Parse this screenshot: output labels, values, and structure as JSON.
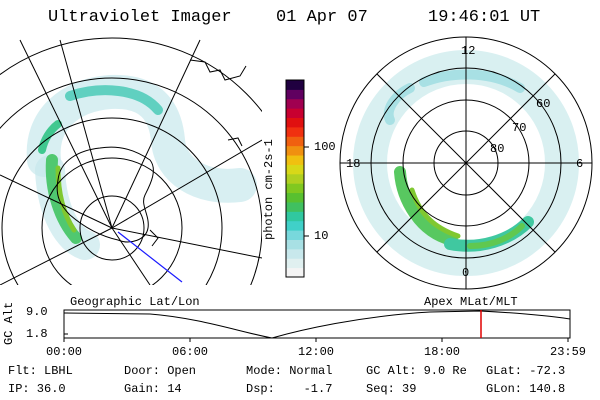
{
  "header": {
    "title": "Ultraviolet Imager",
    "date": "01 Apr 07",
    "time": "19:46:01 UT"
  },
  "colorbar": {
    "unit_label": "photon cm-2s-1",
    "ticks": [
      "100",
      "10"
    ],
    "colors": [
      "#f4f4f4",
      "#e0f0f0",
      "#c8e8ec",
      "#a8e0e4",
      "#78d8dc",
      "#40d0c8",
      "#30c8a0",
      "#40c060",
      "#58c030",
      "#80c820",
      "#b0d020",
      "#d8d818",
      "#f0c010",
      "#f09010",
      "#f06010",
      "#f03010",
      "#e01010",
      "#c80030",
      "#a00050",
      "#600060",
      "#200040"
    ]
  },
  "right_plot": {
    "labels": {
      "top": "12",
      "left": "18",
      "right": "6",
      "bottom": "0",
      "r60": "60",
      "r70": "70",
      "r80": "80"
    }
  },
  "left_plot": {
    "label": "Geographic Lat/Lon"
  },
  "right_plot_caption": "Apex MLat/MLT",
  "timeline": {
    "ylabel": "GC Alt",
    "y_top": "9.0",
    "y_bottom": "1.8",
    "x_ticks": [
      "00:00",
      "06:00",
      "12:00",
      "18:00",
      "23:59"
    ],
    "marker_color": "#e00000"
  },
  "info": {
    "flt": "Flt: LBHL",
    "ip": "IP: 36.0",
    "door": "Door: Open",
    "gain": "Gain: 14",
    "mode": "Mode: Normal",
    "dsp": "Dsp:    -1.7",
    "gcalt": "GC Alt: 9.0 Re",
    "seq": "Seq: 39",
    "glat": "GLat: -72.3",
    "glon": "GLon: 140.8"
  }
}
